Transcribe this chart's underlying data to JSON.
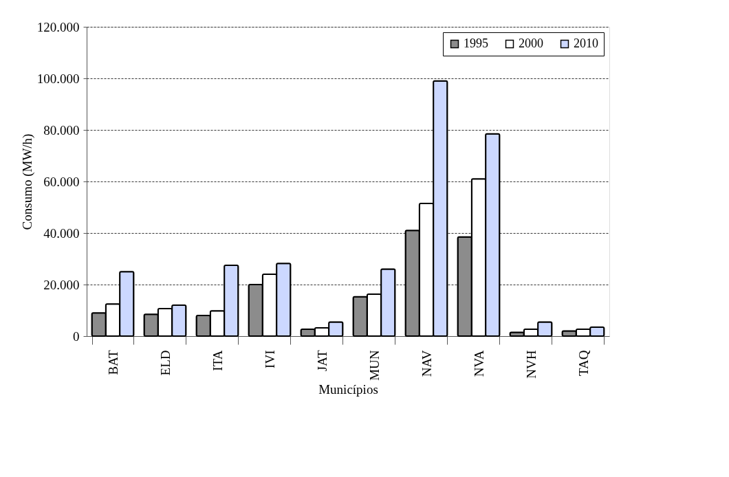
{
  "chart_data": {
    "type": "bar",
    "xlabel": "Municípios",
    "ylabel": "Consumo (MW/h)",
    "categories": [
      "BAT",
      "ELD",
      "ITA",
      "IVI",
      "JAT",
      "MUN",
      "NAV",
      "NVA",
      "NVH",
      "TAQ"
    ],
    "series": [
      {
        "name": "1995",
        "color": "#8c8c8c",
        "values": [
          9000,
          8500,
          8000,
          20000,
          2700,
          15300,
          41000,
          38500,
          1500,
          2000
        ]
      },
      {
        "name": "2000",
        "color": "#ffffff",
        "values": [
          12500,
          10700,
          9800,
          24000,
          3200,
          16300,
          51500,
          61000,
          2700,
          2700
        ]
      },
      {
        "name": "2010",
        "color": "#ccd8ff",
        "values": [
          25000,
          12000,
          27500,
          28200,
          5500,
          26000,
          99000,
          78500,
          5500,
          3500
        ]
      }
    ],
    "ylim": [
      0,
      120000
    ],
    "yticks": [
      0,
      {
        "value": 20000,
        "label": "20.000"
      },
      {
        "value": 40000,
        "label": "40.000"
      },
      {
        "value": 60000,
        "label": "60.000"
      },
      {
        "value": 80000,
        "label": "80.000"
      },
      {
        "value": 100000,
        "label": "100.000"
      },
      {
        "value": 120000,
        "label": "120.000"
      }
    ],
    "grid": "y",
    "legend": "top right"
  }
}
